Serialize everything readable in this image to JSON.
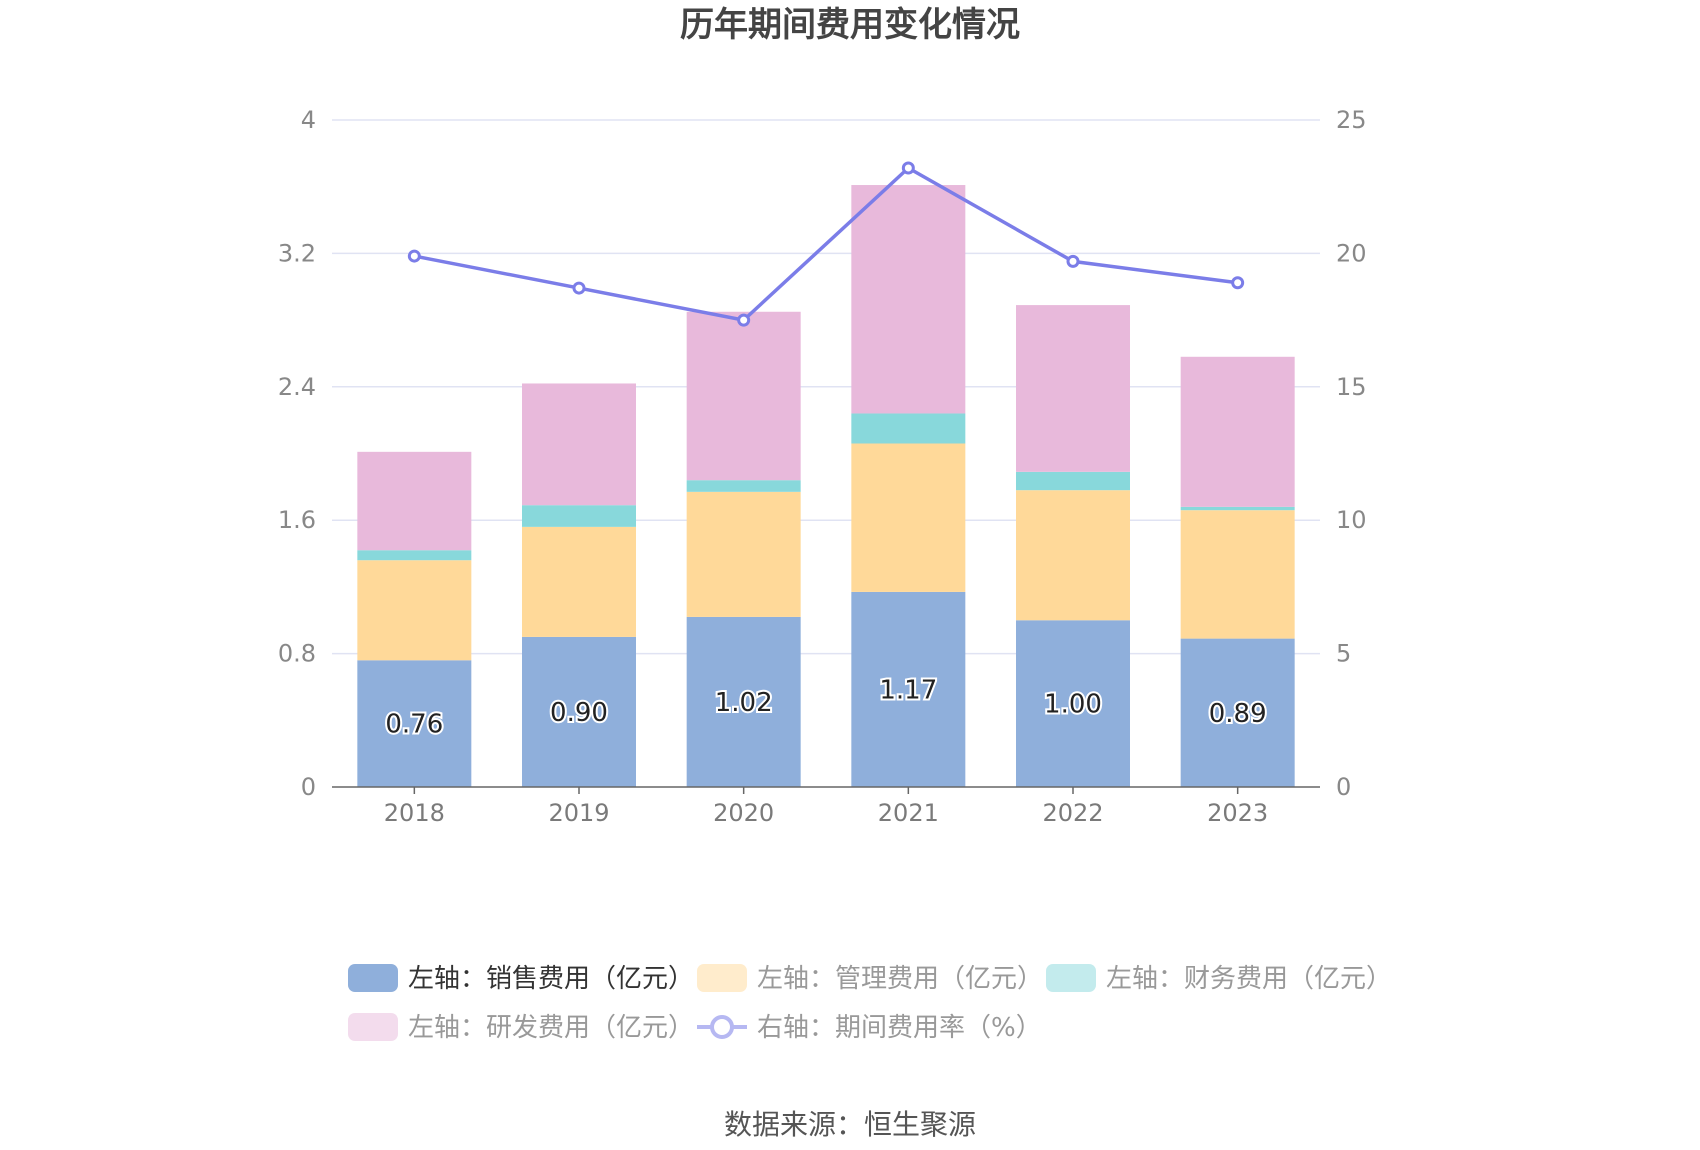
{
  "title": "历年期间费用变化情况",
  "source": "数据来源：恒生聚源",
  "chart_data": {
    "type": "bar",
    "stacked": true,
    "categories": [
      "2018",
      "2019",
      "2020",
      "2021",
      "2022",
      "2023"
    ],
    "series": [
      {
        "name": "左轴：销售费用（亿元）",
        "axis": "left",
        "color": "#8fafdb",
        "values": [
          0.76,
          0.9,
          1.02,
          1.17,
          1.0,
          0.89
        ],
        "labels": [
          "0.76",
          "0.90",
          "1.02",
          "1.17",
          "1.00",
          "0.89"
        ]
      },
      {
        "name": "左轴：管理费用（亿元）",
        "axis": "left",
        "color": "#ffd999",
        "values": [
          0.6,
          0.66,
          0.75,
          0.89,
          0.78,
          0.77
        ]
      },
      {
        "name": "左轴：财务费用（亿元）",
        "axis": "left",
        "color": "#88d8db",
        "values": [
          0.06,
          0.13,
          0.07,
          0.18,
          0.11,
          0.02
        ]
      },
      {
        "name": "左轴：研发费用（亿元）",
        "axis": "left",
        "color": "#e8b9db",
        "values": [
          0.59,
          0.73,
          1.01,
          1.37,
          1.0,
          0.9
        ]
      },
      {
        "name": "右轴：期间费用率（%）",
        "axis": "right",
        "type": "line",
        "color": "#7b7de8",
        "values": [
          19.9,
          18.7,
          17.5,
          23.2,
          19.7,
          18.9
        ]
      }
    ],
    "y_left": {
      "min": 0,
      "max": 4,
      "ticks": [
        "0",
        "0.8",
        "1.6",
        "2.4",
        "3.2",
        "4"
      ]
    },
    "y_right": {
      "min": 0,
      "max": 25,
      "ticks": [
        "0",
        "5",
        "10",
        "15",
        "20",
        "25"
      ]
    },
    "grid": true,
    "legend_position": "bottom"
  }
}
